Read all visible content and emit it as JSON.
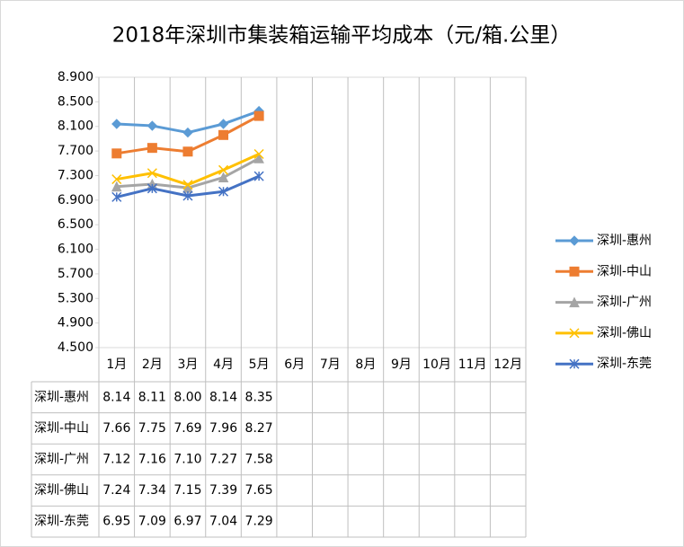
{
  "chart_data": {
    "type": "line",
    "title": "2018年深圳市集装箱运输平均成本（元/箱.公里）",
    "categories": [
      "1月",
      "2月",
      "3月",
      "4月",
      "5月",
      "6月",
      "7月",
      "8月",
      "9月",
      "10月",
      "11月",
      "12月"
    ],
    "ylim": [
      4.5,
      8.9
    ],
    "yticks": [
      {
        "value": 4.5,
        "label": "4.500"
      },
      {
        "value": 4.9,
        "label": "4.900"
      },
      {
        "value": 5.3,
        "label": "5.300"
      },
      {
        "value": 5.7,
        "label": "5.700"
      },
      {
        "value": 6.1,
        "label": "6.100"
      },
      {
        "value": 6.5,
        "label": "6.500"
      },
      {
        "value": 6.9,
        "label": "6.900"
      },
      {
        "value": 7.3,
        "label": "7.300"
      },
      {
        "value": 7.7,
        "label": "7.700"
      },
      {
        "value": 8.1,
        "label": "8.100"
      },
      {
        "value": 8.5,
        "label": "8.500"
      },
      {
        "value": 8.9,
        "label": "8.900"
      }
    ],
    "grid": false,
    "legend": "right",
    "data_table": true,
    "series": [
      {
        "name": "深圳-惠州",
        "color": "#5b9bd5",
        "marker": "diamond",
        "values": [
          8.14,
          8.11,
          8.0,
          8.14,
          8.35,
          null,
          null,
          null,
          null,
          null,
          null,
          null
        ],
        "value_labels": [
          "8.14",
          "8.11",
          "8.00",
          "8.14",
          "8.35",
          null,
          null,
          null,
          null,
          null,
          null,
          null
        ]
      },
      {
        "name": "深圳-中山",
        "color": "#ed7d31",
        "marker": "square",
        "values": [
          7.66,
          7.75,
          7.69,
          7.96,
          8.27,
          null,
          null,
          null,
          null,
          null,
          null,
          null
        ],
        "value_labels": [
          "7.66",
          "7.75",
          "7.69",
          "7.96",
          "8.27",
          null,
          null,
          null,
          null,
          null,
          null,
          null
        ]
      },
      {
        "name": "深圳-广州",
        "color": "#a5a5a5",
        "marker": "triangle",
        "values": [
          7.12,
          7.16,
          7.1,
          7.27,
          7.58,
          null,
          null,
          null,
          null,
          null,
          null,
          null
        ],
        "value_labels": [
          "7.12",
          "7.16",
          "7.10",
          "7.27",
          "7.58",
          null,
          null,
          null,
          null,
          null,
          null,
          null
        ]
      },
      {
        "name": "深圳-佛山",
        "color": "#ffc000",
        "marker": "x",
        "values": [
          7.24,
          7.34,
          7.15,
          7.39,
          7.65,
          null,
          null,
          null,
          null,
          null,
          null,
          null
        ],
        "value_labels": [
          "7.24",
          "7.34",
          "7.15",
          "7.39",
          "7.65",
          null,
          null,
          null,
          null,
          null,
          null,
          null
        ]
      },
      {
        "name": "深圳-东莞",
        "color": "#4472c4",
        "marker": "star",
        "values": [
          6.95,
          7.09,
          6.97,
          7.04,
          7.29,
          null,
          null,
          null,
          null,
          null,
          null,
          null
        ],
        "value_labels": [
          "6.95",
          "7.09",
          "6.97",
          "7.04",
          "7.29",
          null,
          null,
          null,
          null,
          null,
          null,
          null
        ]
      }
    ]
  }
}
